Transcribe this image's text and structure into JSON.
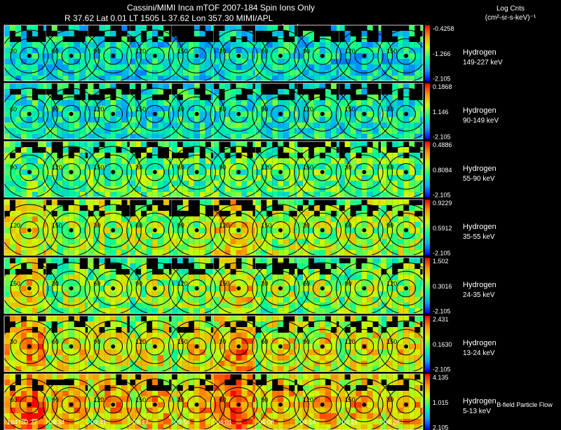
{
  "header": {
    "title": "Cassini/MIMI Inca mTOF  2007-184   Spin    Ions Only",
    "line2": "R      37.62 Lat 0.01 LT 1505 L      37.62 Lon      357.30   MIMI/APL",
    "markers": [
      "satur",
      "saturn",
      "skr-wl"
    ]
  },
  "units": {
    "line1": "Log Cnts",
    "line2": "(cm²-sr-s-keV)⁻¹"
  },
  "footer": {
    "flow_label": "B-field Particle Flow"
  },
  "colors": {
    "background": "#000000",
    "contour": "#000000",
    "text": "#ffffff"
  },
  "chart_data": {
    "type": "heatmap",
    "title": "Cassini/MIMI Inca mTOF  2007-184   Spin    Ions Only",
    "x_ticks": [
      "184T03:27",
      "03:34",
      "03:41",
      "03:47",
      "03:54",
      "04:01",
      "04:08",
      "04:14",
      "04:21",
      "04:28"
    ],
    "rows": [
      {
        "species": "Hydrogen",
        "energy": "149-227 keV",
        "cmax": "-0.4258",
        "cmid": "-1.266",
        "cmin": "-2.105",
        "level": 0.32
      },
      {
        "species": "Hydrogen",
        "energy": "90-149 keV",
        "cmax": "0.1868",
        "cmid": "1.146",
        "cmin": "-2.105",
        "level": 0.36
      },
      {
        "species": "Hydrogen",
        "energy": "55-90 keV",
        "cmax": "0.4886",
        "cmid": "0.8084",
        "cmin": "-2.105",
        "level": 0.46
      },
      {
        "species": "Hydrogen",
        "energy": "35-55 keV",
        "cmax": "0.9229",
        "cmid": "0.5912",
        "cmin": "-2.105",
        "level": 0.55
      },
      {
        "species": "Hydrogen",
        "energy": "24-35 keV",
        "cmax": "1.502",
        "cmid": "0.3016",
        "cmin": "-2.105",
        "level": 0.62
      },
      {
        "species": "Hydrogen",
        "energy": "13-24 keV",
        "cmax": "2.431",
        "cmid": "0.1630",
        "cmin": "-2.105",
        "level": 0.72
      },
      {
        "species": "Hydrogen",
        "energy": "5-13 keV",
        "cmax": "4.135",
        "cmid": "1.015",
        "cmin": "2.105",
        "level": 0.8
      }
    ],
    "contour_labels": [
      "30",
      "60",
      "90",
      "120",
      "150"
    ]
  }
}
